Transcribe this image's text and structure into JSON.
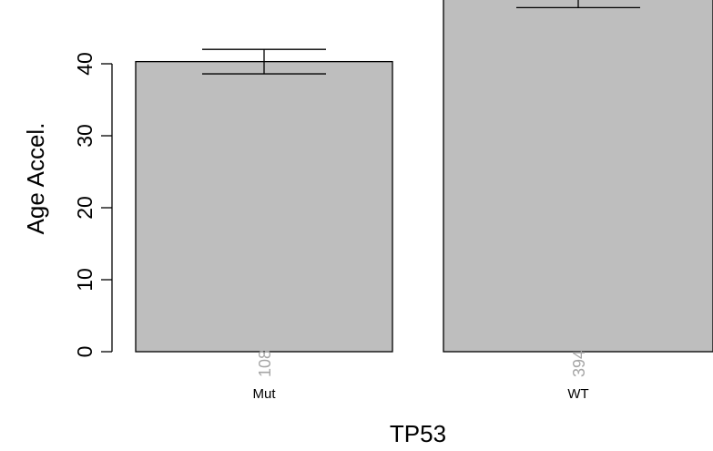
{
  "chart_data": {
    "type": "bar",
    "title": "",
    "xlabel": "TP53",
    "ylabel": "Age Accel.",
    "categories": [
      "Mut",
      "WT"
    ],
    "values": [
      40.3,
      49.5
    ],
    "error_bars": [
      {
        "low": 38.6,
        "high": 42.0
      },
      {
        "low": 47.8,
        "high": 51.2
      }
    ],
    "sample_counts": [
      "108",
      "394"
    ],
    "ylim": [
      0,
      49
    ],
    "yticks": [
      0,
      10,
      20,
      30,
      40
    ],
    "grid": false,
    "bar_color": "#bebebe",
    "count_color": "#a6a6a6"
  }
}
